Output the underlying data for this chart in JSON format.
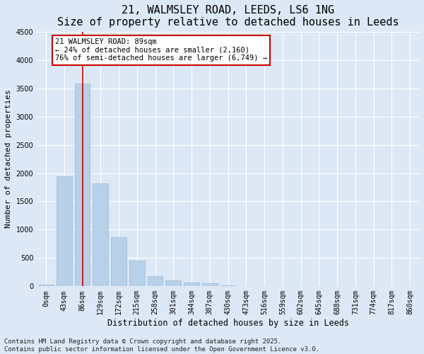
{
  "title": "21, WALMSLEY ROAD, LEEDS, LS6 1NG",
  "subtitle": "Size of property relative to detached houses in Leeds",
  "xlabel": "Distribution of detached houses by size in Leeds",
  "ylabel": "Number of detached properties",
  "bar_labels": [
    "0sqm",
    "43sqm",
    "86sqm",
    "129sqm",
    "172sqm",
    "215sqm",
    "258sqm",
    "301sqm",
    "344sqm",
    "387sqm",
    "430sqm",
    "473sqm",
    "516sqm",
    "559sqm",
    "602sqm",
    "645sqm",
    "688sqm",
    "731sqm",
    "774sqm",
    "817sqm",
    "860sqm"
  ],
  "bar_values": [
    25,
    1950,
    3580,
    1820,
    870,
    460,
    175,
    110,
    70,
    50,
    15,
    5,
    3,
    2,
    1,
    1,
    0,
    0,
    0,
    0,
    0
  ],
  "bar_color": "#b8d0e8",
  "bar_edge_color": "#9ab8d8",
  "background_color": "#dce8f5",
  "grid_color": "#ffffff",
  "vline_x": 2,
  "vline_color": "#cc0000",
  "ylim": [
    0,
    4500
  ],
  "yticks": [
    0,
    500,
    1000,
    1500,
    2000,
    2500,
    3000,
    3500,
    4000,
    4500
  ],
  "annotation_text": "21 WALMSLEY ROAD: 89sqm\n← 24% of detached houses are smaller (2,160)\n76% of semi-detached houses are larger (6,749) →",
  "annotation_box_color": "#ffffff",
  "annotation_box_edge": "#cc0000",
  "footer_text": "Contains HM Land Registry data © Crown copyright and database right 2025.\nContains public sector information licensed under the Open Government Licence v3.0.",
  "title_fontsize": 11,
  "subtitle_fontsize": 9.5,
  "xlabel_fontsize": 8.5,
  "ylabel_fontsize": 8,
  "tick_fontsize": 7,
  "annotation_fontsize": 7.5,
  "footer_fontsize": 6.5
}
